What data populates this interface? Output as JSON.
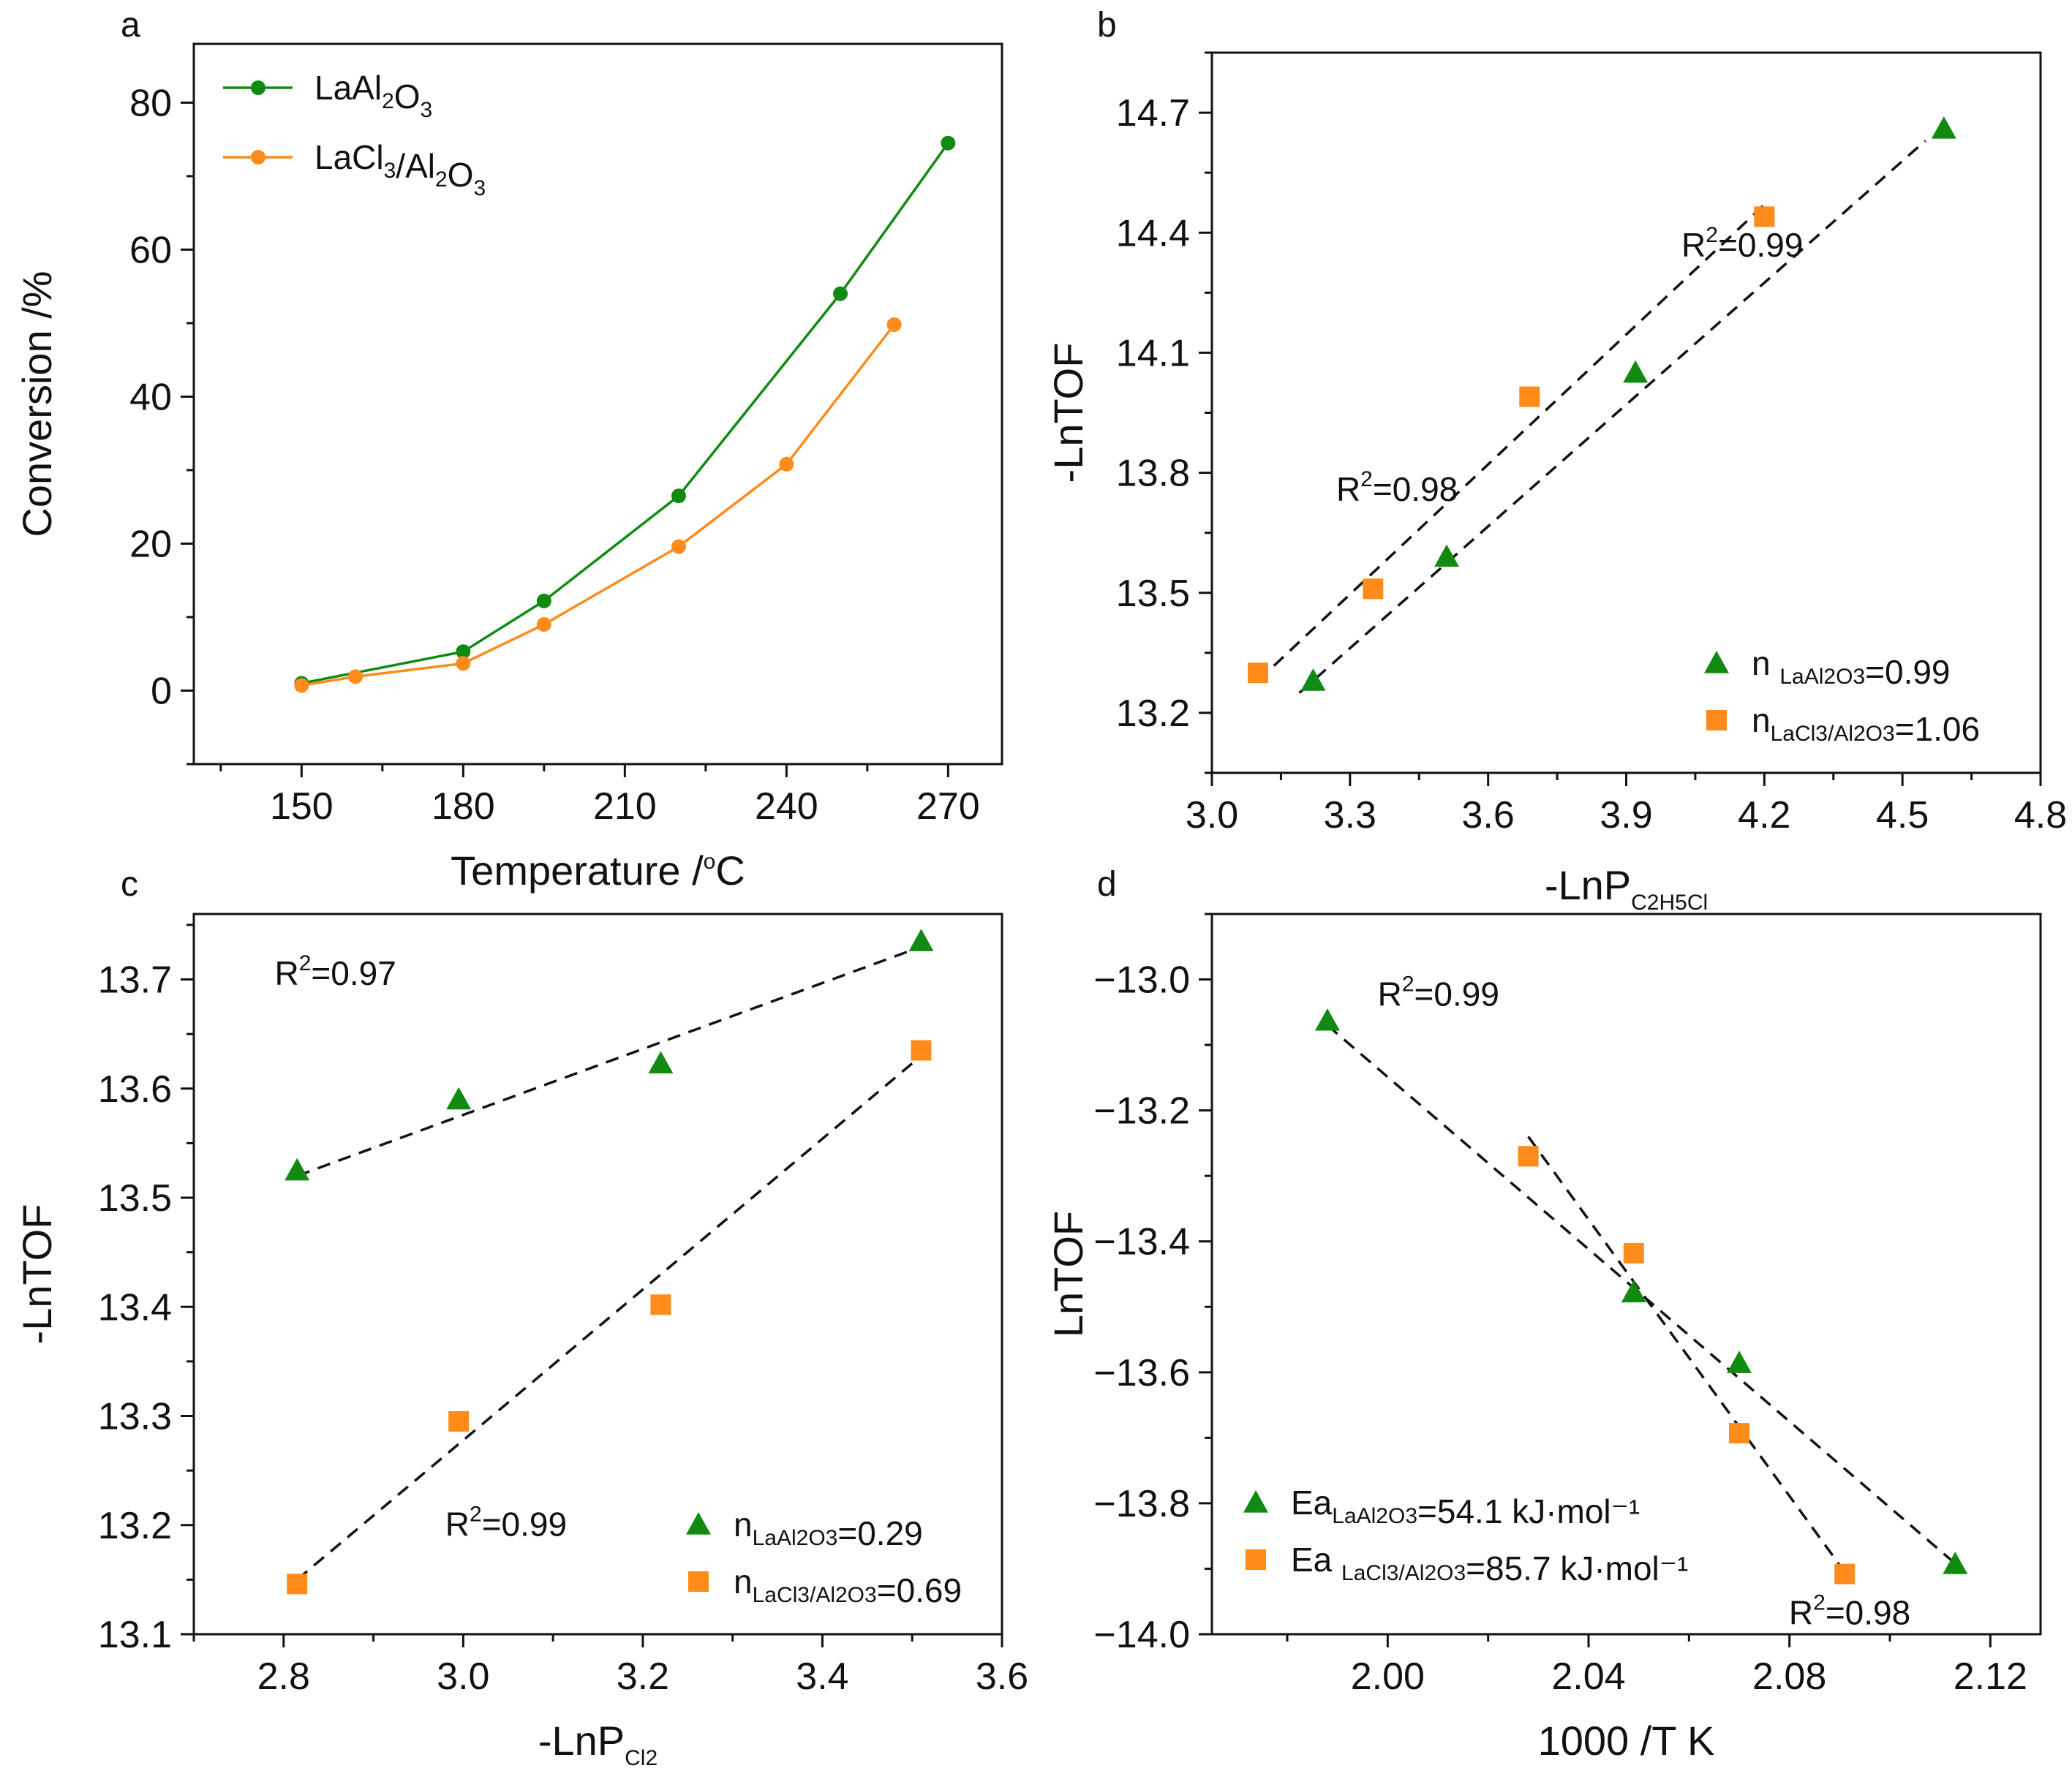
{
  "figure": {
    "panel_count": 4
  },
  "colors": {
    "green": "#118a11",
    "orange": "#ff8c1a",
    "axis": "#111111",
    "fit": "#111111"
  },
  "chart_data": [
    {
      "id": "a",
      "type": "line",
      "panel_letter": "a",
      "xlabel": "Temperature /°C",
      "ylabel": "Conversion /%",
      "xlim": [
        130,
        280
      ],
      "ylim": [
        -10,
        88
      ],
      "xticks": [
        150,
        180,
        210,
        240,
        270
      ],
      "yticks": [
        0,
        20,
        40,
        60,
        80
      ],
      "series": [
        {
          "name": "LaAl2O3",
          "color": "green",
          "marker": "circle",
          "x": [
            150,
            180,
            195,
            220,
            250,
            270
          ],
          "y": [
            1.0,
            5.3,
            12.2,
            26.5,
            54.0,
            74.5
          ]
        },
        {
          "name": "LaCl3/Al2O3",
          "color": "orange",
          "marker": "circle",
          "x": [
            150,
            160,
            180,
            195,
            220,
            240,
            260
          ],
          "y": [
            0.7,
            1.9,
            3.7,
            9.0,
            19.6,
            30.8,
            49.8
          ]
        }
      ],
      "legend": {
        "location": "top-left",
        "entries": [
          {
            "series": "LaAl2O3",
            "parts": [
              [
                "La",
                ""
              ],
              [
                "Al",
                ""
              ],
              [
                "2",
                "sub"
              ],
              [
                "O",
                ""
              ],
              [
                "3",
                "sub"
              ]
            ]
          },
          {
            "series": "LaCl3/Al2O3",
            "parts": [
              [
                "LaCl",
                ""
              ],
              [
                "3",
                "sub"
              ],
              [
                "/Al",
                ""
              ],
              [
                "2",
                "sub"
              ],
              [
                "O",
                ""
              ],
              [
                "3",
                "sub"
              ]
            ]
          }
        ]
      }
    },
    {
      "id": "b",
      "type": "scatter",
      "panel_letter": "b",
      "xlabel": "-LnP",
      "xlabel_sub": "C2H5Cl",
      "ylabel": "-LnTOF",
      "xlim": [
        3.0,
        4.8
      ],
      "ylim": [
        13.05,
        14.85
      ],
      "xticks": [
        3.0,
        3.3,
        3.6,
        3.9,
        4.2,
        4.5,
        4.8
      ],
      "yticks": [
        13.2,
        13.5,
        13.8,
        14.1,
        14.4,
        14.7
      ],
      "tick_decimals_x": 1,
      "tick_decimals_y": 1,
      "series": [
        {
          "name": "LaAl2O3",
          "color": "green",
          "marker": "triangle",
          "x": [
            3.22,
            3.51,
            3.92,
            4.59
          ],
          "y": [
            13.28,
            13.59,
            14.05,
            14.66
          ]
        },
        {
          "name": "LaCl3/Al2O3",
          "color": "orange",
          "marker": "square",
          "x": [
            3.1,
            3.35,
            3.69,
            4.2
          ],
          "y": [
            13.3,
            13.51,
            13.99,
            14.44
          ]
        }
      ],
      "fits": [
        {
          "series": "LaAl2O3",
          "x": [
            3.19,
            4.55
          ],
          "y": [
            13.25,
            14.63
          ]
        },
        {
          "series": "LaCl3/Al2O3",
          "x": [
            3.1,
            4.2
          ],
          "y": [
            13.28,
            14.47
          ]
        }
      ],
      "annotations": [
        {
          "label": "R²=0.99",
          "x": 4.02,
          "y": 14.34,
          "anchor": "start"
        },
        {
          "label": "R²=0.98",
          "x": 3.27,
          "y": 13.73,
          "anchor": "start"
        }
      ],
      "legend": {
        "location": "bottom-right",
        "entries": [
          {
            "series": "LaAl2O3",
            "parts": [
              [
                "n ",
                ""
              ],
              [
                "LaAl2O3",
                "sub"
              ],
              [
                "=0.99",
                ""
              ]
            ]
          },
          {
            "series": "LaCl3/Al2O3",
            "parts": [
              [
                "n",
                ""
              ],
              [
                "LaCl3/Al2O3",
                "sub"
              ],
              [
                "=1.06",
                ""
              ]
            ]
          }
        ]
      }
    },
    {
      "id": "c",
      "type": "scatter",
      "panel_letter": "c",
      "xlabel": "-LnP",
      "xlabel_sub": "Cl2",
      "ylabel": "-LnTOF",
      "xlim": [
        2.7,
        3.6
      ],
      "ylim": [
        13.1,
        13.76
      ],
      "xticks": [
        2.8,
        3.0,
        3.2,
        3.4,
        3.6
      ],
      "yticks": [
        13.1,
        13.2,
        13.3,
        13.4,
        13.5,
        13.6,
        13.7
      ],
      "tick_decimals_x": 1,
      "tick_decimals_y": 1,
      "series": [
        {
          "name": "LaAl2O3",
          "color": "green",
          "marker": "triangle",
          "x": [
            2.815,
            2.995,
            3.22,
            3.51
          ],
          "y": [
            13.525,
            13.59,
            13.623,
            13.735
          ]
        },
        {
          "name": "LaCl3/Al2O3",
          "color": "orange",
          "marker": "square",
          "x": [
            2.815,
            2.995,
            3.22,
            3.51
          ],
          "y": [
            13.146,
            13.295,
            13.402,
            13.635
          ]
        }
      ],
      "fits": [
        {
          "series": "LaAl2O3",
          "x": [
            2.815,
            3.51
          ],
          "y": [
            13.52,
            13.73
          ]
        },
        {
          "series": "LaCl3/Al2O3",
          "x": [
            2.815,
            3.51
          ],
          "y": [
            13.15,
            13.63
          ]
        }
      ],
      "annotations": [
        {
          "label": "R²=0.97",
          "x": 2.79,
          "y": 13.695,
          "anchor": "start"
        },
        {
          "label": "R²=0.99",
          "x": 2.98,
          "y": 13.19,
          "anchor": "start"
        }
      ],
      "legend": {
        "location": "bottom-right",
        "entries": [
          {
            "series": "LaAl2O3",
            "parts": [
              [
                "n",
                ""
              ],
              [
                "LaAl2O3",
                "sub"
              ],
              [
                "=0.29",
                ""
              ]
            ]
          },
          {
            "series": "LaCl3/Al2O3",
            "parts": [
              [
                "n",
                ""
              ],
              [
                "LaCl3/Al2O3",
                "sub"
              ],
              [
                "=0.69",
                ""
              ]
            ]
          }
        ]
      }
    },
    {
      "id": "d",
      "type": "scatter",
      "panel_letter": "d",
      "xlabel": "1000 /T K",
      "ylabel": "LnTOF",
      "xlim": [
        1.965,
        2.13
      ],
      "ylim": [
        -14.0,
        -12.9
      ],
      "xticks": [
        2.0,
        2.04,
        2.08,
        2.12
      ],
      "yticks": [
        -14.0,
        -13.8,
        -13.6,
        -13.4,
        -13.2,
        -13.0
      ],
      "tick_decimals_x": 2,
      "tick_decimals_y": 1,
      "series": [
        {
          "name": "LaAl2O3",
          "color": "green",
          "marker": "triangle",
          "x": [
            1.988,
            2.049,
            2.07,
            2.113
          ],
          "y": [
            -13.063,
            -13.478,
            -13.586,
            -13.893
          ]
        },
        {
          "name": "LaCl3/Al2O3",
          "color": "orange",
          "marker": "square",
          "x": [
            2.028,
            2.049,
            2.07,
            2.091
          ],
          "y": [
            -13.27,
            -13.418,
            -13.693,
            -13.908
          ]
        }
      ],
      "fits": [
        {
          "series": "LaAl2O3",
          "x": [
            1.988,
            2.113
          ],
          "y": [
            -13.07,
            -13.892
          ]
        },
        {
          "series": "LaCl3/Al2O3",
          "x": [
            2.028,
            2.091
          ],
          "y": [
            -13.24,
            -13.905
          ]
        }
      ],
      "annotations": [
        {
          "label": "R²=0.99",
          "x": 1.998,
          "y": -13.04,
          "anchor": "start"
        },
        {
          "label": "R²=0.98",
          "x": 2.092,
          "y": -13.985,
          "anchor": "middle"
        }
      ],
      "legend": {
        "location": "bottom-left",
        "entries": [
          {
            "series": "LaAl2O3",
            "parts": [
              [
                "Ea",
                ""
              ],
              [
                "LaAl2O3",
                "sub"
              ],
              [
                "=54.1 kJ·mol⁻¹",
                ""
              ]
            ]
          },
          {
            "series": "LaCl3/Al2O3",
            "parts": [
              [
                "Ea ",
                ""
              ],
              [
                "LaCl3/Al2O3",
                "sub"
              ],
              [
                "=85.7 kJ·mol⁻¹",
                ""
              ]
            ]
          }
        ]
      }
    }
  ]
}
